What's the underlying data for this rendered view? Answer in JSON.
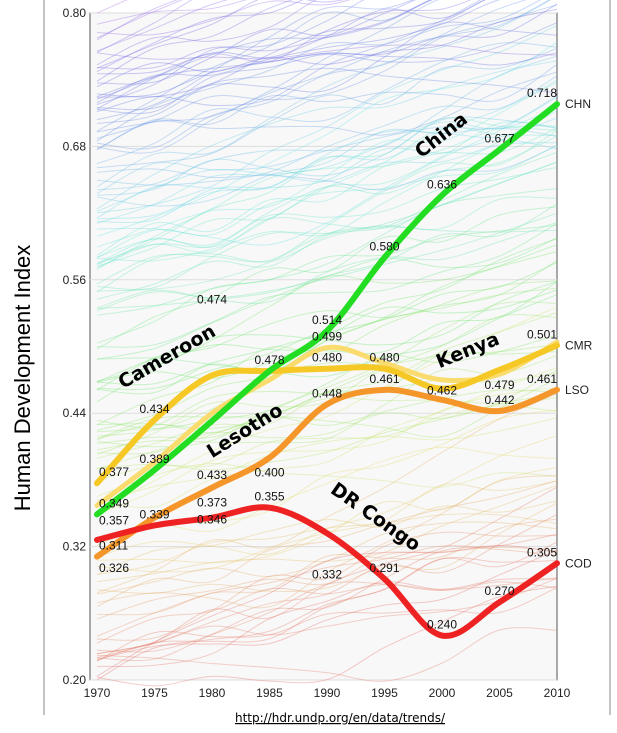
{
  "chart_data": {
    "type": "line",
    "title": "",
    "xlabel": "",
    "ylabel": "Human Development Index",
    "xlim": [
      1970,
      2010
    ],
    "ylim": [
      0.2,
      0.8
    ],
    "x_ticks": [
      "1970",
      "1975",
      "1980",
      "1985",
      "1990",
      "1995",
      "2000",
      "2005",
      "2010"
    ],
    "y_ticks": [
      "0.20",
      "0.32",
      "0.44",
      "0.56",
      "0.68",
      "0.80"
    ],
    "grid": "horizontal",
    "source": "http://hdr.undp.org/en/data/trends/",
    "x": [
      1970,
      1975,
      1980,
      1985,
      1990,
      1995,
      2000,
      2005,
      2010
    ],
    "series": [
      {
        "name": "China",
        "code": "CHN",
        "color": "#22dd22",
        "values": [
          0.349,
          0.389,
          0.433,
          0.478,
          0.514,
          0.58,
          0.636,
          0.677,
          0.718
        ],
        "labels": [
          "0.349",
          "0.389",
          "0.433",
          "0.478",
          "0.514",
          "0.580",
          "0.636",
          "0.677",
          "0.718"
        ]
      },
      {
        "name": "Cameroon",
        "code": "CMR",
        "color": "#f5c825",
        "values": [
          0.377,
          0.434,
          0.474,
          0.478,
          0.48,
          0.48,
          0.462,
          0.479,
          0.501
        ],
        "labels": [
          "0.377",
          "0.434",
          "0.474",
          "",
          "0.480",
          "0.480",
          "0.462",
          "0.479",
          "0.501"
        ]
      },
      {
        "name": "Kenya",
        "code": "",
        "color": "#fadc6e",
        "values": [
          0.357,
          0.396,
          0.44,
          0.47,
          0.499,
          0.485,
          0.47,
          0.475,
          0.504
        ],
        "labels": [
          "0.357",
          "",
          "",
          "",
          "0.499",
          "",
          "",
          "",
          ""
        ]
      },
      {
        "name": "Lesotho",
        "code": "LSO",
        "color": "#f5962a",
        "values": [
          0.311,
          0.346,
          0.373,
          0.4,
          0.448,
          0.461,
          0.452,
          0.442,
          0.461
        ],
        "labels": [
          "0.311",
          "",
          "0.373",
          "0.400",
          "0.448",
          "0.461",
          "",
          "0.442",
          "0.461"
        ]
      },
      {
        "name": "DR Congo",
        "code": "COD",
        "color": "#ee2222",
        "values": [
          0.326,
          0.339,
          0.346,
          0.355,
          0.332,
          0.291,
          0.24,
          0.27,
          0.305
        ],
        "labels": [
          "0.326",
          "0.339",
          "0.346",
          "0.355",
          "0.332",
          "0.291",
          "0.240",
          "0.270",
          "0.305"
        ]
      }
    ]
  }
}
